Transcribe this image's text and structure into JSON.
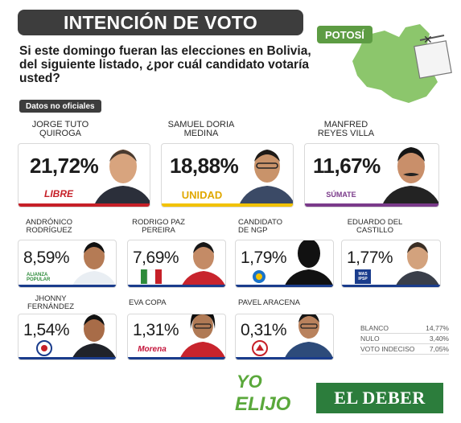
{
  "header": {
    "title": "INTENCIÓN DE VOTO",
    "question": "Si este domingo fueran las elecciones en Bolivia, del siguiente listado, ¿por cuál candidato votaría usted?",
    "badge": "Datos no oficiales"
  },
  "region": {
    "label": "POTOSÍ"
  },
  "chart_data": {
    "type": "table",
    "candidates": [
      {
        "name": "JORGE TUTO QUIROGA",
        "value": "21,72%",
        "party": "LIBRE",
        "color": "#c62028"
      },
      {
        "name": "SAMUEL DORIA MEDINA",
        "value": "18,88%",
        "party": "UNIDAD",
        "color": "#f2c200"
      },
      {
        "name": "MANFRED REYES VILLA",
        "value": "11,67%",
        "party": "SÚMATE",
        "color": "#7a3a8a"
      },
      {
        "name": "ANDRÓNICO RODRÍGUEZ",
        "value": "8,59%",
        "party": "ALIANZA POPULAR",
        "color": "#2e8b3a"
      },
      {
        "name": "RODRIGO PAZ PEREIRA",
        "value": "7,69%",
        "party": "PDC",
        "color": "#c62028"
      },
      {
        "name": "CANDIDATO DE NGP",
        "value": "1,79%",
        "party": "NGP",
        "color": "#1a73c9"
      },
      {
        "name": "EDUARDO DEL CASTILLO",
        "value": "1,77%",
        "party": "MAS IPSP",
        "color": "#1a3c8c"
      },
      {
        "name": "JHONNY FERNÁNDEZ",
        "value": "1,54%",
        "party": "UCS",
        "color": "#1a3c8c"
      },
      {
        "name": "EVA COPA",
        "value": "1,31%",
        "party": "MORENA",
        "color": "#c4163c"
      },
      {
        "name": "PAVEL ARACENA",
        "value": "0,31%",
        "party": "ADN",
        "color": "#c62028"
      }
    ],
    "others": [
      {
        "label": "BLANCO",
        "value": "14,77%"
      },
      {
        "label": "NULO",
        "value": "3,40%"
      },
      {
        "label": "VOTO INDECISO",
        "value": "7,05%"
      }
    ]
  },
  "logos": {
    "libre": "LIBRE",
    "unidad": "UNIDAD",
    "sumate": "SÚMATE",
    "alianza": "ALIANZA POPULAR",
    "mas": "MAS IPSP",
    "morena": "Morena"
  },
  "brand": {
    "yo": "YO",
    "elijo": "ELIJO",
    "deber": "EL DEBER"
  }
}
